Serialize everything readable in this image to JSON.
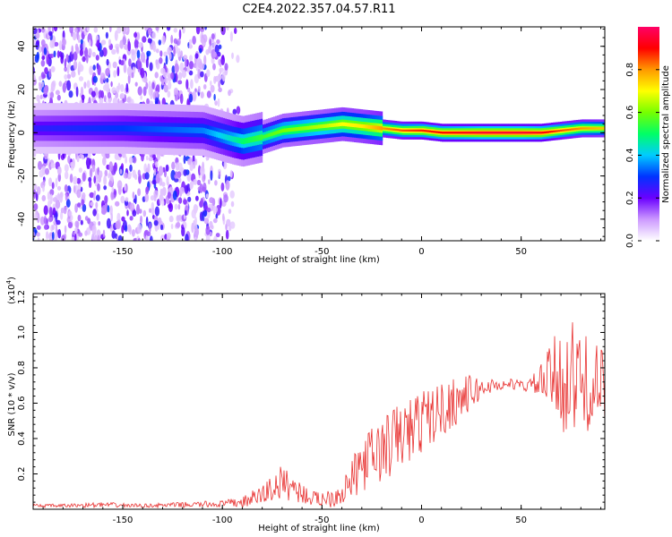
{
  "chart_data": [
    {
      "type": "heatmap",
      "title": "C2E4.2022.357.04.57.R11",
      "xlabel": "Height of straight line (km)",
      "ylabel": "Frequency (Hz)",
      "xlim": [
        -195,
        92
      ],
      "ylim": [
        -50,
        49
      ],
      "x_ticks": [
        -150,
        -100,
        -50,
        0,
        50
      ],
      "y_ticks": [
        -40,
        -20,
        0,
        20,
        40
      ],
      "grid": false,
      "colorbar": {
        "label": "Normalized spectral amplitude",
        "range": [
          0,
          1
        ],
        "ticks": [
          0.0,
          0.2,
          0.4,
          0.6,
          0.8
        ],
        "colormap": [
          "#ffffff",
          "#cc99ff",
          "#6a00ff",
          "#0033ff",
          "#00ccff",
          "#00ff66",
          "#77ff00",
          "#ffff00",
          "#ff9900",
          "#ff0000",
          "#ff0066"
        ]
      },
      "ridge": {
        "x": [
          -195,
          -150,
          -110,
          -95,
          -90,
          -80,
          -70,
          -60,
          -50,
          -40,
          -30,
          -20,
          -10,
          0,
          10,
          20,
          30,
          40,
          50,
          60,
          70,
          80,
          92
        ],
        "frequency": [
          2,
          2,
          1,
          -3,
          -4,
          -2,
          1,
          2,
          3,
          4,
          3,
          2,
          1,
          1,
          0,
          0,
          0,
          0,
          0,
          0,
          1,
          2,
          2
        ],
        "peak_amplitude": [
          0.25,
          0.3,
          0.35,
          0.45,
          0.5,
          0.55,
          0.6,
          0.62,
          0.65,
          0.7,
          0.72,
          0.8,
          0.85,
          0.88,
          0.9,
          0.92,
          0.95,
          0.95,
          0.95,
          0.92,
          0.85,
          0.8,
          0.75
        ]
      },
      "noise_region": {
        "x_range": [
          -195,
          -90
        ],
        "frequency_range": [
          -50,
          49
        ],
        "amplitude_range": [
          0.05,
          0.3
        ]
      }
    },
    {
      "type": "line",
      "title": "",
      "xlabel": "Height of straight line (km)",
      "ylabel": "SNR (10 * v/v)",
      "y_multiplier": "(x10",
      "y_multiplier_exp": "4",
      "y_multiplier_close": ")",
      "xlim": [
        -195,
        92
      ],
      "ylim": [
        0,
        1.22
      ],
      "x_ticks": [
        -150,
        -100,
        -50,
        0,
        50
      ],
      "y_ticks": [
        0.2,
        0.4,
        0.6,
        0.8,
        1.0,
        1.2
      ],
      "series_color": "#e8302f",
      "series": [
        {
          "x": [
            -195,
            -180,
            -160,
            -140,
            -120,
            -100,
            -90,
            -80,
            -75,
            -70,
            -65,
            -60,
            -55,
            -50,
            -45,
            -40,
            -35,
            -30,
            -25,
            -20,
            -15,
            -10,
            -5,
            0,
            5,
            10,
            15,
            20,
            25,
            30,
            35,
            40,
            45,
            50,
            55,
            60,
            65,
            70,
            75,
            80,
            85,
            92
          ],
          "y": [
            0.02,
            0.02,
            0.025,
            0.02,
            0.025,
            0.03,
            0.04,
            0.08,
            0.12,
            0.15,
            0.13,
            0.09,
            0.06,
            0.06,
            0.07,
            0.1,
            0.16,
            0.25,
            0.3,
            0.33,
            0.38,
            0.42,
            0.45,
            0.5,
            0.53,
            0.56,
            0.6,
            0.63,
            0.66,
            0.68,
            0.7,
            0.7,
            0.71,
            0.7,
            0.7,
            0.72,
            0.74,
            0.75,
            0.73,
            0.72,
            0.7,
            0.68
          ],
          "amplitude": [
            0.01,
            0.01,
            0.015,
            0.01,
            0.015,
            0.02,
            0.03,
            0.06,
            0.09,
            0.1,
            0.08,
            0.06,
            0.04,
            0.05,
            0.06,
            0.08,
            0.12,
            0.15,
            0.17,
            0.19,
            0.2,
            0.2,
            0.19,
            0.18,
            0.17,
            0.16,
            0.15,
            0.12,
            0.1,
            0.06,
            0.04,
            0.03,
            0.03,
            0.03,
            0.05,
            0.1,
            0.2,
            0.3,
            0.35,
            0.3,
            0.25,
            0.22
          ]
        }
      ]
    }
  ]
}
